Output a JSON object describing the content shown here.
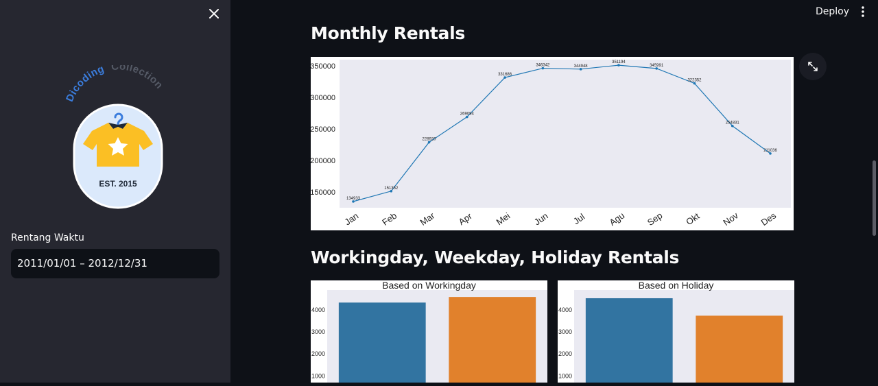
{
  "sidebar": {
    "logo": {
      "arc_text_1": "Dicoding",
      "arc_text_2": "Collection",
      "est": "EST. 2015"
    },
    "range_label": "Rentang Waktu",
    "range_value": "2011/01/01 – 2012/12/31"
  },
  "header": {
    "deploy_label": "Deploy"
  },
  "sections": {
    "monthly_title": "Monthly Rentals",
    "workingday_title": "Workingday, Weekday, Holiday Rentals"
  },
  "colors": {
    "bg": "#0e1117",
    "sidebar": "#262730",
    "plot_bg": "#eaeaf2",
    "line": "#1f77b4",
    "bar_blue": "#3274a1",
    "bar_orange": "#e1812c",
    "logo_blue": "#3b7ddd",
    "logo_yellow": "#fbbf24"
  },
  "icons": {
    "close": "close-icon",
    "menu": "kebab-menu-icon",
    "expand": "fullscreen-icon"
  },
  "chart_data": [
    {
      "type": "line",
      "categories": [
        "Jan",
        "Feb",
        "Mar",
        "Apr",
        "Mei",
        "Jun",
        "Jul",
        "Agu",
        "Sep",
        "Okt",
        "Nov",
        "Des"
      ],
      "values": [
        134933,
        151352,
        228920,
        269094,
        331686,
        346342,
        344948,
        351194,
        345991,
        322352,
        254831,
        211036
      ],
      "ylim": [
        125000,
        360000
      ],
      "yticks": [
        150000,
        200000,
        250000,
        300000,
        350000
      ],
      "data_labels": true,
      "grid": false
    },
    {
      "type": "bar",
      "title": "Based on Workingday",
      "values": [
        4330,
        4585
      ],
      "ylim": [
        700,
        4900
      ],
      "yticks": [
        1000,
        2000,
        3000,
        4000
      ]
    },
    {
      "type": "bar",
      "title": "Based on Holiday",
      "values": [
        4527,
        3735
      ],
      "ylim": [
        700,
        4900
      ],
      "yticks": [
        1000,
        2000,
        3000,
        4000
      ]
    }
  ]
}
